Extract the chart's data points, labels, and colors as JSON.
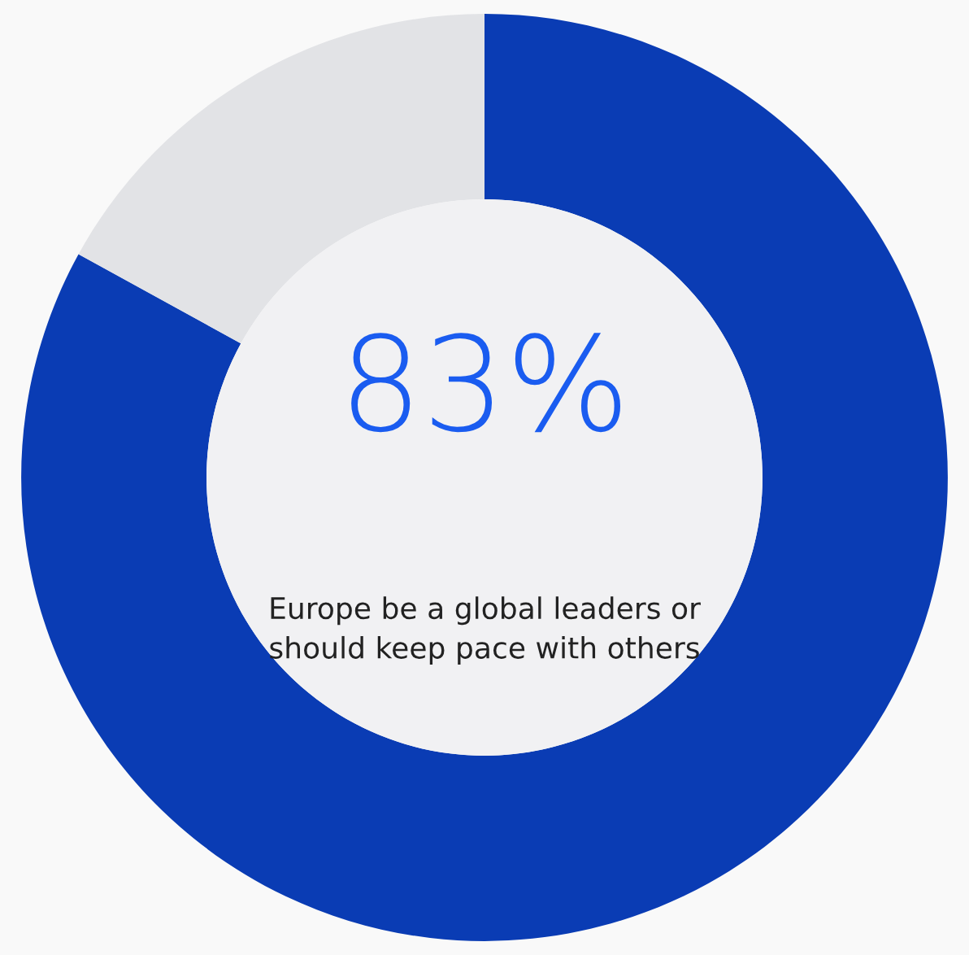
{
  "chart_data": {
    "type": "donut",
    "categories": [
      null,
      null
    ],
    "values": [
      83,
      17
    ],
    "colors": [
      "#0a3cb4",
      "#e2e3e6"
    ],
    "value_labels": [
      "83%",
      null
    ],
    "annotations": [
      "Europe be a global leaders or should keep pace with others"
    ]
  }
}
